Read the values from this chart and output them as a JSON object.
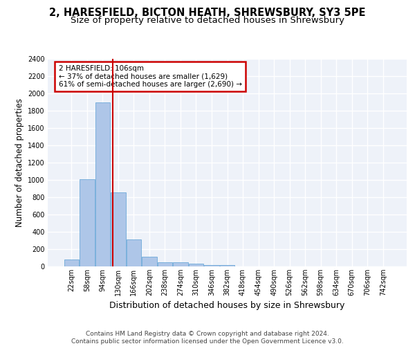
{
  "title_line1": "2, HARESFIELD, BICTON HEATH, SHREWSBURY, SY3 5PE",
  "title_line2": "Size of property relative to detached houses in Shrewsbury",
  "xlabel": "Distribution of detached houses by size in Shrewsbury",
  "ylabel": "Number of detached properties",
  "bin_labels": [
    "22sqm",
    "58sqm",
    "94sqm",
    "130sqm",
    "166sqm",
    "202sqm",
    "238sqm",
    "274sqm",
    "310sqm",
    "346sqm",
    "382sqm",
    "418sqm",
    "454sqm",
    "490sqm",
    "526sqm",
    "562sqm",
    "598sqm",
    "634sqm",
    "670sqm",
    "706sqm",
    "742sqm"
  ],
  "bar_values": [
    80,
    1010,
    1900,
    860,
    310,
    110,
    50,
    50,
    35,
    20,
    15,
    0,
    0,
    0,
    0,
    0,
    0,
    0,
    0,
    0,
    0
  ],
  "bar_color": "#aec6e8",
  "bar_edge_color": "#5a9fd4",
  "vline_x": 2.67,
  "annotation_text": "2 HARESFIELD: 106sqm\n← 37% of detached houses are smaller (1,629)\n61% of semi-detached houses are larger (2,690) →",
  "annotation_box_color": "#ffffff",
  "annotation_box_edge": "#cc0000",
  "vline_color": "#cc0000",
  "ylim": [
    0,
    2400
  ],
  "yticks": [
    0,
    200,
    400,
    600,
    800,
    1000,
    1200,
    1400,
    1600,
    1800,
    2000,
    2200,
    2400
  ],
  "footer_line1": "Contains HM Land Registry data © Crown copyright and database right 2024.",
  "footer_line2": "Contains public sector information licensed under the Open Government Licence v3.0.",
  "bg_color": "#eef2f9",
  "grid_color": "#ffffff",
  "title_fontsize": 10.5,
  "subtitle_fontsize": 9.5,
  "xlabel_fontsize": 9,
  "ylabel_fontsize": 8.5,
  "tick_fontsize": 7,
  "annotation_fontsize": 7.5,
  "footer_fontsize": 6.5
}
